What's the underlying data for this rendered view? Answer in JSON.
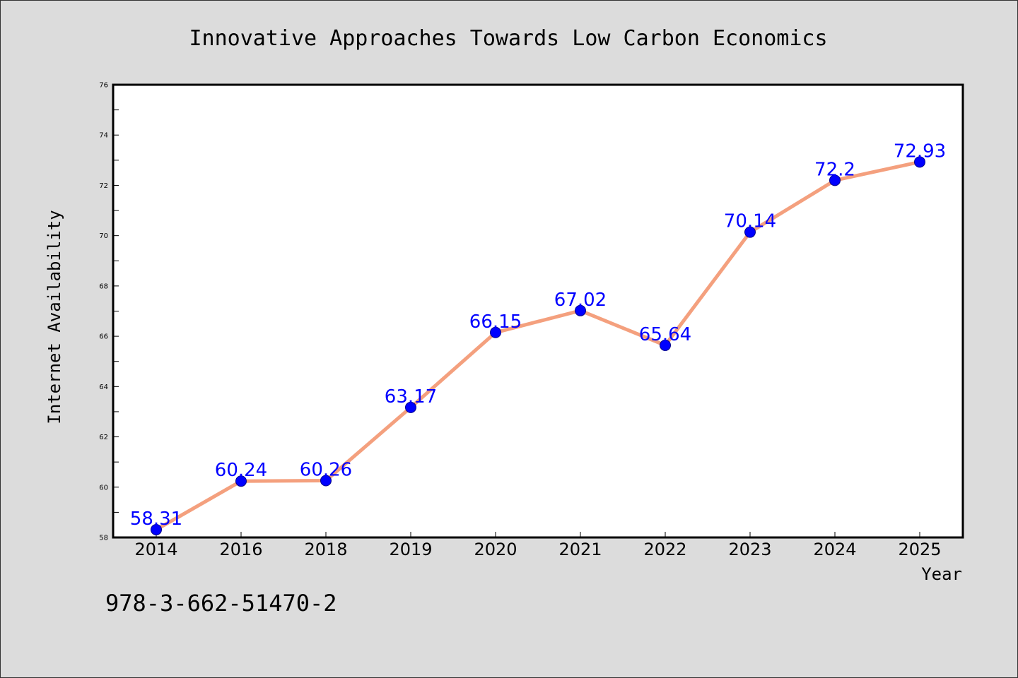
{
  "chart_data": {
    "type": "line",
    "title": "Innovative Approaches Towards Low Carbon Economics",
    "xlabel": "Year",
    "ylabel": "Internet Availability",
    "categories": [
      "2014",
      "2016",
      "2018",
      "2019",
      "2020",
      "2021",
      "2022",
      "2023",
      "2024",
      "2025"
    ],
    "series": [
      {
        "values": [
          58.31,
          60.24,
          60.26,
          63.17,
          66.15,
          67.02,
          65.64,
          70.14,
          72.2,
          72.93
        ],
        "data_labels": [
          "58.31",
          "60.24",
          "60.26",
          "63.17",
          "66.15",
          "67.02",
          "65.64",
          "70.14",
          "72.2",
          "72.93"
        ]
      }
    ],
    "ylim": [
      58,
      76
    ],
    "yticks": [
      58,
      60,
      62,
      64,
      66,
      68,
      70,
      72,
      74,
      76
    ],
    "grid": false,
    "legend": "none",
    "colors": {
      "line": "#f4a07e",
      "marker": "#0000ff",
      "marker_edge": "#00008b",
      "data_label": "#0000ff",
      "plot_background": "#ffffff",
      "figure_background": "#dcdcdc"
    }
  },
  "annotation": {
    "isbn": "978-3-662-51470-2"
  }
}
